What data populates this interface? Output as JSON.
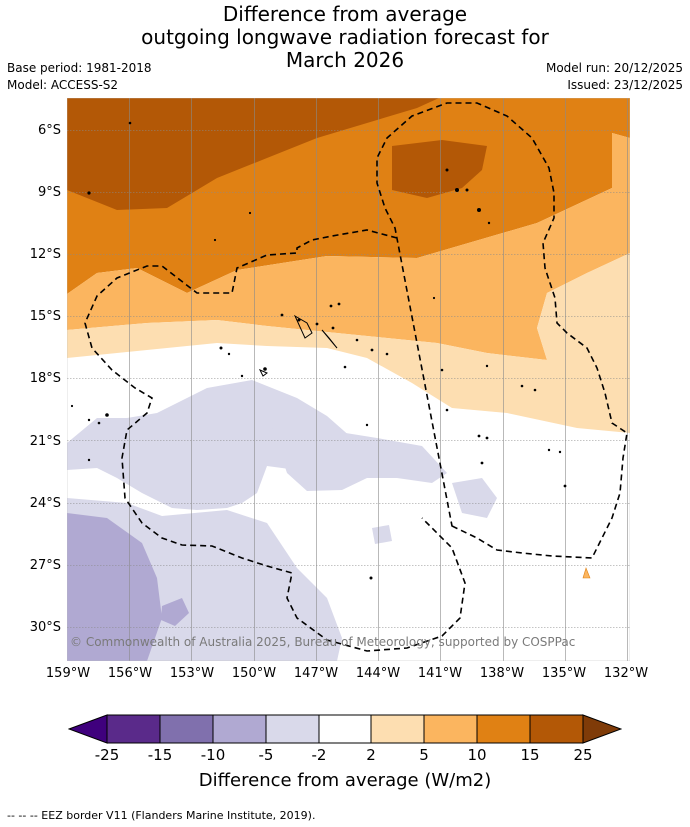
{
  "title": {
    "line1": "Difference from average",
    "line2": "outgoing longwave radiation forecast for",
    "line3": "March 2026"
  },
  "meta": {
    "base_period": "Base period: 1981-2018",
    "model": "Model: ACCESS-S2",
    "model_run": "Model run: 20/12/2025",
    "issued": "Issued: 23/12/2025"
  },
  "axes": {
    "lat_labels": [
      "6°S",
      "9°S",
      "12°S",
      "15°S",
      "18°S",
      "21°S",
      "24°S",
      "27°S",
      "30°S"
    ],
    "lon_labels": [
      "159°W",
      "156°W",
      "153°W",
      "150°W",
      "147°W",
      "144°W",
      "141°W",
      "138°W",
      "135°W",
      "132°W"
    ]
  },
  "colorbar": {
    "labels": [
      "-25",
      "-15",
      "-10",
      "-5",
      "-2",
      "2",
      "5",
      "10",
      "15",
      "25"
    ],
    "unit_label": "Difference from average (W/m2)",
    "colors": [
      "#3f007d",
      "#5a2a8a",
      "#8070ad",
      "#b0a9d2",
      "#d9d9ea",
      "#ffffff",
      "#fddeb1",
      "#fbb55f",
      "#e08114",
      "#b35806",
      "#7f3b08"
    ]
  },
  "credit": "© Commonwealth of Australia 2025, Bureau of Meteorology, supported by COSPPac",
  "legend_note": "-- -- -- EEZ border V11 (Flanders Marine Institute, 2019)."
}
